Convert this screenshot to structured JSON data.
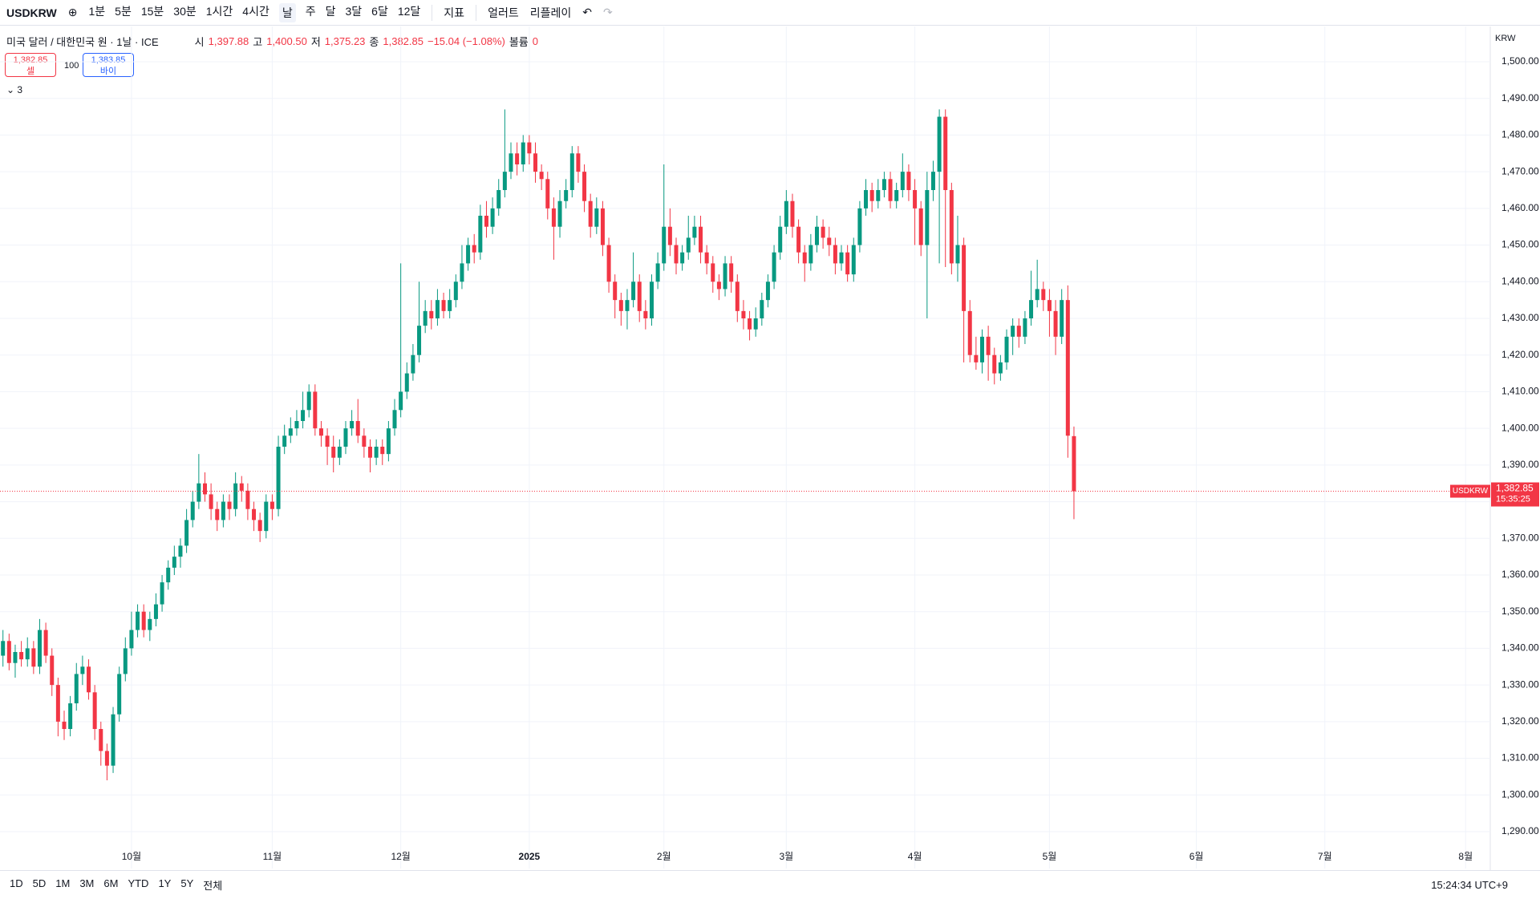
{
  "toolbar": {
    "symbol": "USDKRW",
    "intervals": [
      "1분",
      "5분",
      "15분",
      "30분",
      "1시간",
      "4시간",
      "날",
      "주",
      "달",
      "3달",
      "6달",
      "12달"
    ],
    "indicators": "지표",
    "alert": "얼러트",
    "replay": "리플레이"
  },
  "legend": {
    "title": "미국 달러 / 대한민국 원 · 1날 · ICE",
    "o_label": "시",
    "o": "1,397.88",
    "h_label": "고",
    "h": "1,400.50",
    "l_label": "저",
    "l": "1,375.23",
    "c_label": "종",
    "c": "1,382.85",
    "change": "−15.04 (−1.08%)",
    "vol_label": "볼륨",
    "vol": "0"
  },
  "trade": {
    "sell_price": "1,382.85",
    "sell": "셀",
    "qty": "100",
    "buy_price": "1,383.85",
    "buy": "바이",
    "collapse": "3"
  },
  "currency": "KRW",
  "price_tag": {
    "symbol": "USDKRW",
    "price": "1,382.85",
    "time": "15:35:25"
  },
  "bottom": {
    "ranges": [
      "1D",
      "5D",
      "1M",
      "3M",
      "6M",
      "YTD",
      "1Y",
      "5Y",
      "전체"
    ],
    "clock": "15:24:34 UTC+9"
  },
  "chart_data": {
    "type": "candlestick",
    "up_color": "#089981",
    "down_color": "#f23645",
    "last": 1382.85,
    "open": [
      1338,
      1342,
      1336,
      1339,
      1337,
      1340,
      1335,
      1345,
      1338,
      1330,
      1320,
      1318,
      1325,
      1333,
      1335,
      1328,
      1318,
      1312,
      1308,
      1322,
      1333,
      1340,
      1345,
      1350,
      1345,
      1348,
      1352,
      1358,
      1362,
      1365,
      1368,
      1375,
      1380,
      1385,
      1382,
      1378,
      1375,
      1380,
      1378,
      1385,
      1383,
      1378,
      1375,
      1372,
      1380,
      1378,
      1395,
      1398,
      1400,
      1402,
      1405,
      1410,
      1400,
      1398,
      1395,
      1392,
      1395,
      1400,
      1402,
      1398,
      1395,
      1392,
      1395,
      1393,
      1400,
      1405,
      1410,
      1415,
      1420,
      1428,
      1432,
      1430,
      1435,
      1432,
      1435,
      1440,
      1445,
      1450,
      1448,
      1458,
      1455,
      1460,
      1465,
      1470,
      1475,
      1472,
      1478,
      1475,
      1470,
      1468,
      1460,
      1455,
      1462,
      1465,
      1475,
      1470,
      1462,
      1455,
      1460,
      1450,
      1440,
      1435,
      1432,
      1435,
      1440,
      1432,
      1430,
      1440,
      1445,
      1455,
      1450,
      1445,
      1448,
      1452,
      1455,
      1448,
      1445,
      1440,
      1438,
      1445,
      1440,
      1432,
      1430,
      1427,
      1430,
      1435,
      1440,
      1448,
      1455,
      1462,
      1455,
      1448,
      1445,
      1450,
      1455,
      1452,
      1450,
      1445,
      1448,
      1442,
      1450,
      1460,
      1465,
      1462,
      1465,
      1468,
      1462,
      1465,
      1470,
      1465,
      1460,
      1450,
      1465,
      1470,
      1485,
      1465,
      1445,
      1450,
      1432,
      1420,
      1418,
      1425,
      1420,
      1415,
      1418,
      1425,
      1428,
      1425,
      1430,
      1435,
      1438,
      1435,
      1432,
      1425,
      1435,
      1397.88
    ],
    "high": [
      1345,
      1344,
      1341,
      1342,
      1343,
      1342,
      1348,
      1347,
      1340,
      1332,
      1323,
      1327,
      1336,
      1338,
      1337,
      1330,
      1320,
      1314,
      1324,
      1335,
      1343,
      1350,
      1352,
      1352,
      1350,
      1355,
      1360,
      1364,
      1368,
      1370,
      1378,
      1383,
      1393,
      1388,
      1385,
      1380,
      1382,
      1382,
      1388,
      1387,
      1385,
      1380,
      1377,
      1382,
      1382,
      1398,
      1401,
      1403,
      1405,
      1410,
      1412,
      1412,
      1402,
      1400,
      1398,
      1397,
      1402,
      1405,
      1408,
      1400,
      1397,
      1397,
      1397,
      1402,
      1408,
      1445,
      1418,
      1423,
      1440,
      1435,
      1435,
      1438,
      1437,
      1438,
      1442,
      1450,
      1452,
      1453,
      1461,
      1462,
      1463,
      1468,
      1487,
      1478,
      1478,
      1480,
      1480,
      1478,
      1472,
      1470,
      1463,
      1465,
      1468,
      1477,
      1477,
      1472,
      1464,
      1463,
      1462,
      1452,
      1442,
      1437,
      1438,
      1448,
      1442,
      1435,
      1442,
      1448,
      1472,
      1460,
      1452,
      1450,
      1458,
      1458,
      1458,
      1450,
      1447,
      1442,
      1447,
      1447,
      1442,
      1435,
      1432,
      1433,
      1437,
      1442,
      1450,
      1458,
      1465,
      1464,
      1457,
      1450,
      1453,
      1458,
      1457,
      1455,
      1452,
      1450,
      1450,
      1452,
      1462,
      1468,
      1467,
      1468,
      1470,
      1470,
      1467,
      1475,
      1472,
      1468,
      1462,
      1470,
      1473,
      1487,
      1487,
      1467,
      1458,
      1452,
      1435,
      1425,
      1427,
      1428,
      1422,
      1420,
      1427,
      1430,
      1430,
      1432,
      1443,
      1446,
      1440,
      1438,
      1435,
      1438,
      1439,
      1400.5
    ],
    "low": [
      1335,
      1334,
      1332,
      1335,
      1335,
      1333,
      1333,
      1336,
      1327,
      1316,
      1315,
      1316,
      1323,
      1330,
      1326,
      1315,
      1308,
      1304,
      1306,
      1320,
      1331,
      1338,
      1343,
      1343,
      1342,
      1346,
      1350,
      1356,
      1360,
      1362,
      1366,
      1373,
      1378,
      1380,
      1375,
      1372,
      1373,
      1375,
      1376,
      1380,
      1375,
      1372,
      1369,
      1370,
      1375,
      1376,
      1393,
      1396,
      1398,
      1400,
      1403,
      1398,
      1395,
      1390,
      1388,
      1390,
      1393,
      1398,
      1396,
      1392,
      1388,
      1390,
      1390,
      1391,
      1398,
      1403,
      1408,
      1413,
      1418,
      1426,
      1427,
      1428,
      1430,
      1430,
      1433,
      1438,
      1443,
      1445,
      1446,
      1452,
      1453,
      1458,
      1463,
      1468,
      1469,
      1470,
      1472,
      1467,
      1465,
      1457,
      1446,
      1452,
      1460,
      1463,
      1467,
      1459,
      1452,
      1453,
      1447,
      1437,
      1430,
      1428,
      1427,
      1433,
      1429,
      1427,
      1428,
      1438,
      1443,
      1447,
      1442,
      1443,
      1446,
      1450,
      1445,
      1442,
      1437,
      1435,
      1436,
      1437,
      1429,
      1427,
      1424,
      1425,
      1428,
      1433,
      1438,
      1446,
      1453,
      1452,
      1445,
      1440,
      1443,
      1448,
      1449,
      1447,
      1442,
      1443,
      1440,
      1440,
      1448,
      1458,
      1459,
      1460,
      1463,
      1460,
      1460,
      1463,
      1462,
      1450,
      1447,
      1430,
      1462,
      1445,
      1444,
      1442,
      1440,
      1418,
      1418,
      1416,
      1415,
      1413,
      1412,
      1413,
      1416,
      1420,
      1422,
      1423,
      1428,
      1433,
      1432,
      1425,
      1420,
      1423,
      1392,
      1375.23
    ],
    "close": [
      1342,
      1336,
      1339,
      1337,
      1340,
      1335,
      1345,
      1338,
      1330,
      1320,
      1318,
      1325,
      1333,
      1335,
      1328,
      1318,
      1312,
      1308,
      1322,
      1333,
      1340,
      1345,
      1350,
      1345,
      1348,
      1352,
      1358,
      1362,
      1365,
      1368,
      1375,
      1380,
      1385,
      1382,
      1378,
      1375,
      1380,
      1378,
      1385,
      1383,
      1378,
      1375,
      1372,
      1380,
      1378,
      1395,
      1398,
      1400,
      1402,
      1405,
      1410,
      1400,
      1398,
      1395,
      1392,
      1395,
      1400,
      1402,
      1398,
      1395,
      1392,
      1395,
      1393,
      1400,
      1405,
      1410,
      1415,
      1420,
      1428,
      1432,
      1430,
      1435,
      1432,
      1435,
      1440,
      1445,
      1450,
      1448,
      1458,
      1455,
      1460,
      1465,
      1470,
      1475,
      1472,
      1478,
      1475,
      1470,
      1468,
      1460,
      1455,
      1462,
      1465,
      1475,
      1470,
      1462,
      1455,
      1460,
      1450,
      1440,
      1435,
      1432,
      1435,
      1440,
      1432,
      1430,
      1440,
      1445,
      1455,
      1450,
      1445,
      1448,
      1452,
      1455,
      1448,
      1445,
      1440,
      1438,
      1445,
      1440,
      1432,
      1430,
      1427,
      1430,
      1435,
      1440,
      1448,
      1455,
      1462,
      1455,
      1448,
      1445,
      1450,
      1455,
      1452,
      1450,
      1445,
      1448,
      1442,
      1450,
      1460,
      1465,
      1462,
      1465,
      1468,
      1462,
      1465,
      1470,
      1465,
      1460,
      1450,
      1465,
      1470,
      1485,
      1465,
      1445,
      1450,
      1432,
      1420,
      1418,
      1425,
      1420,
      1415,
      1418,
      1425,
      1428,
      1425,
      1430,
      1435,
      1438,
      1435,
      1432,
      1425,
      1435,
      1398,
      1382.85
    ],
    "xlim": [
      0,
      250
    ],
    "xticks": [
      {
        "value": 21,
        "label": "10월"
      },
      {
        "value": 44,
        "label": "11월"
      },
      {
        "value": 65,
        "label": "12월"
      },
      {
        "value": 86,
        "label": "2025"
      },
      {
        "value": 108,
        "label": "2월"
      },
      {
        "value": 128,
        "label": "3월"
      },
      {
        "value": 149,
        "label": "4월"
      },
      {
        "value": 171,
        "label": "5월"
      },
      {
        "value": 195,
        "label": "6월"
      },
      {
        "value": 216,
        "label": "7월"
      },
      {
        "value": 239,
        "label": "8월"
      }
    ],
    "ylim": [
      1290,
      1500
    ],
    "yticks": [
      {
        "value": 1290,
        "label": "1,290.00"
      },
      {
        "value": 1300,
        "label": "1,300.00"
      },
      {
        "value": 1310,
        "label": "1,310.00"
      },
      {
        "value": 1320,
        "label": "1,320.00"
      },
      {
        "value": 1330,
        "label": "1,330.00"
      },
      {
        "value": 1340,
        "label": "1,340.00"
      },
      {
        "value": 1350,
        "label": "1,350.00"
      },
      {
        "value": 1360,
        "label": "1,360.00"
      },
      {
        "value": 1370,
        "label": "1,370.00"
      },
      {
        "value": 1380,
        "label": "1,380.00"
      },
      {
        "value": 1390,
        "label": "1,390.00"
      },
      {
        "value": 1400,
        "label": "1,400.00"
      },
      {
        "value": 1410,
        "label": "1,410.00"
      },
      {
        "value": 1420,
        "label": "1,420.00"
      },
      {
        "value": 1430,
        "label": "1,430.00"
      },
      {
        "value": 1440,
        "label": "1,440.00"
      },
      {
        "value": 1450,
        "label": "1,450.00"
      },
      {
        "value": 1460,
        "label": "1,460.00"
      },
      {
        "value": 1470,
        "label": "1,470.00"
      },
      {
        "value": 1480,
        "label": "1,480.00"
      },
      {
        "value": 1490,
        "label": "1,490.00"
      },
      {
        "value": 1500,
        "label": "1,500.00"
      }
    ],
    "grid": true
  }
}
